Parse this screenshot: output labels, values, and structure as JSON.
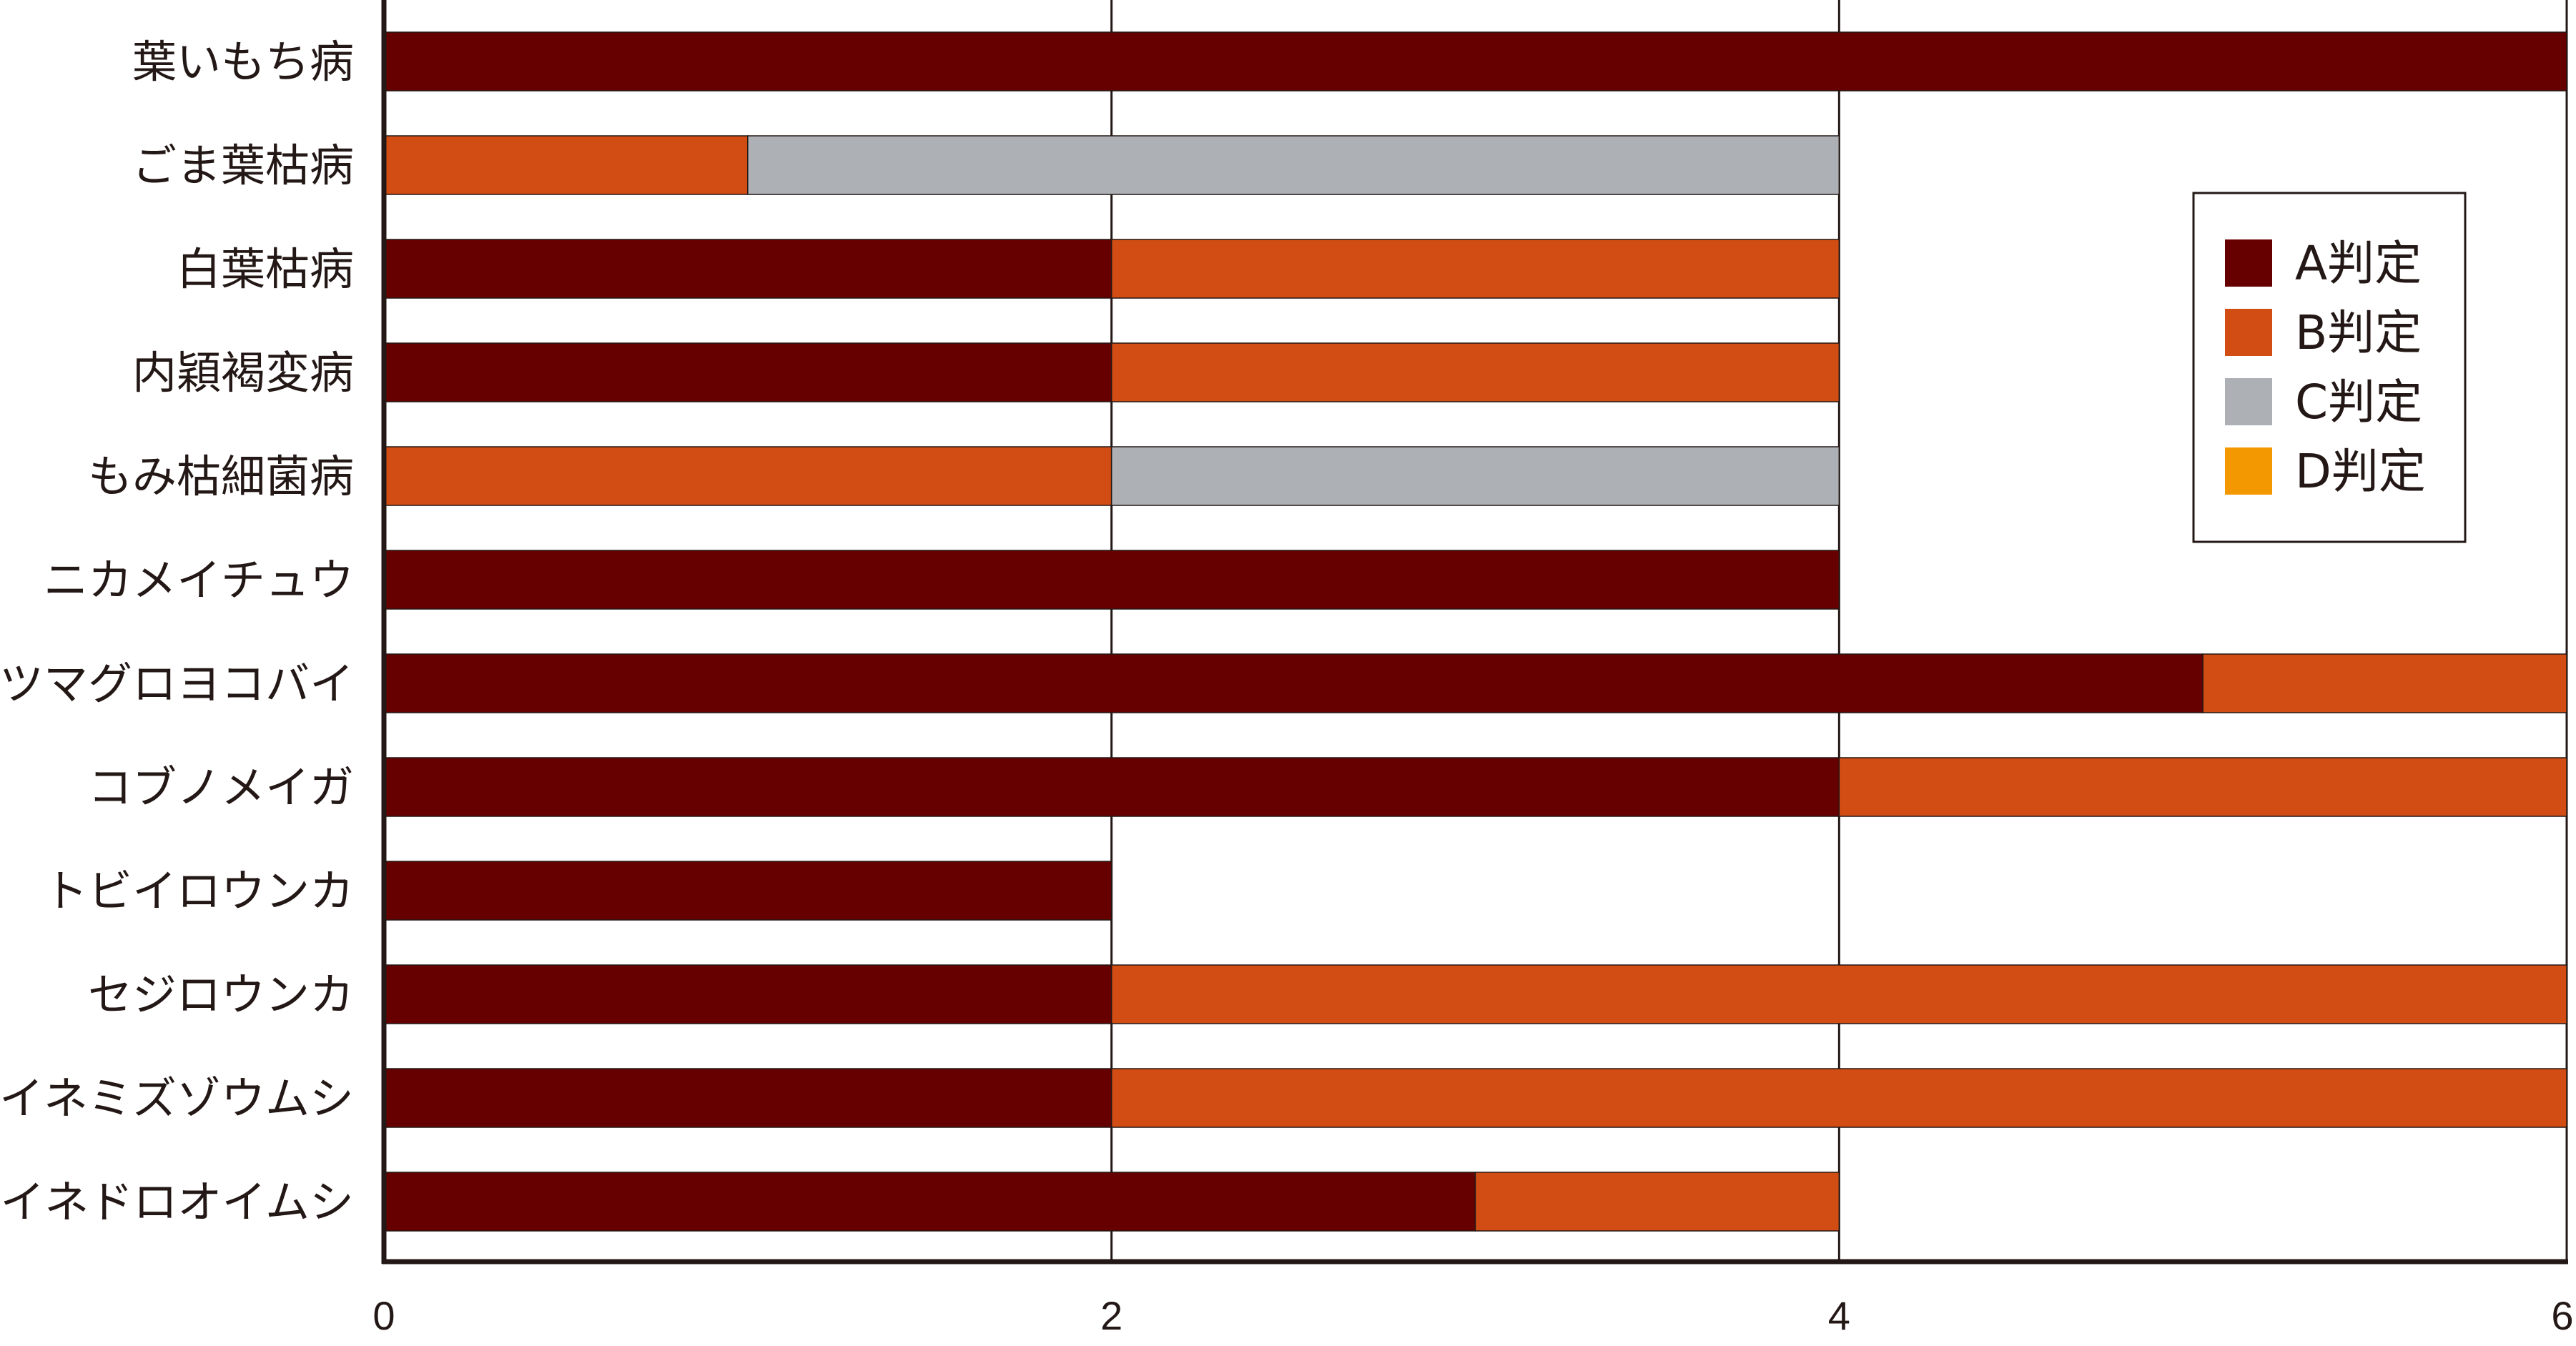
{
  "chart_data": {
    "type": "bar",
    "orientation": "horizontal",
    "stacked": true,
    "categories": [
      "葉いもち病",
      "ごま葉枯病",
      "白葉枯病",
      "内穎褐変病",
      "もみ枯細菌病",
      "ニカメイチュウ",
      "ツマグロヨコバイ",
      "コブノメイガ",
      "トビイロウンカ",
      "セジロウンカ",
      "イネミズゾウムシ",
      "イネドロオイムシ"
    ],
    "series": [
      {
        "name": "A判定",
        "color": "#660000",
        "values": [
          6,
          0,
          2,
          2,
          0,
          4,
          5,
          4,
          2,
          2,
          2,
          3
        ]
      },
      {
        "name": "B判定",
        "color": "#d14d14",
        "values": [
          0,
          1,
          2,
          2,
          2,
          0,
          1,
          2,
          0,
          4,
          4,
          1
        ]
      },
      {
        "name": "C判定",
        "color": "#adb0b5",
        "values": [
          0,
          3,
          0,
          0,
          2,
          0,
          0,
          0,
          0,
          0,
          0,
          0
        ]
      },
      {
        "name": "D判定",
        "color": "#f39800",
        "values": [
          0,
          0,
          0,
          0,
          0,
          0,
          0,
          0,
          0,
          0,
          0,
          0
        ]
      }
    ],
    "xlim": [
      0,
      6
    ],
    "xticks": [
      "0",
      "2",
      "4",
      "6"
    ],
    "grid": "vertical",
    "legend": "top-right"
  }
}
